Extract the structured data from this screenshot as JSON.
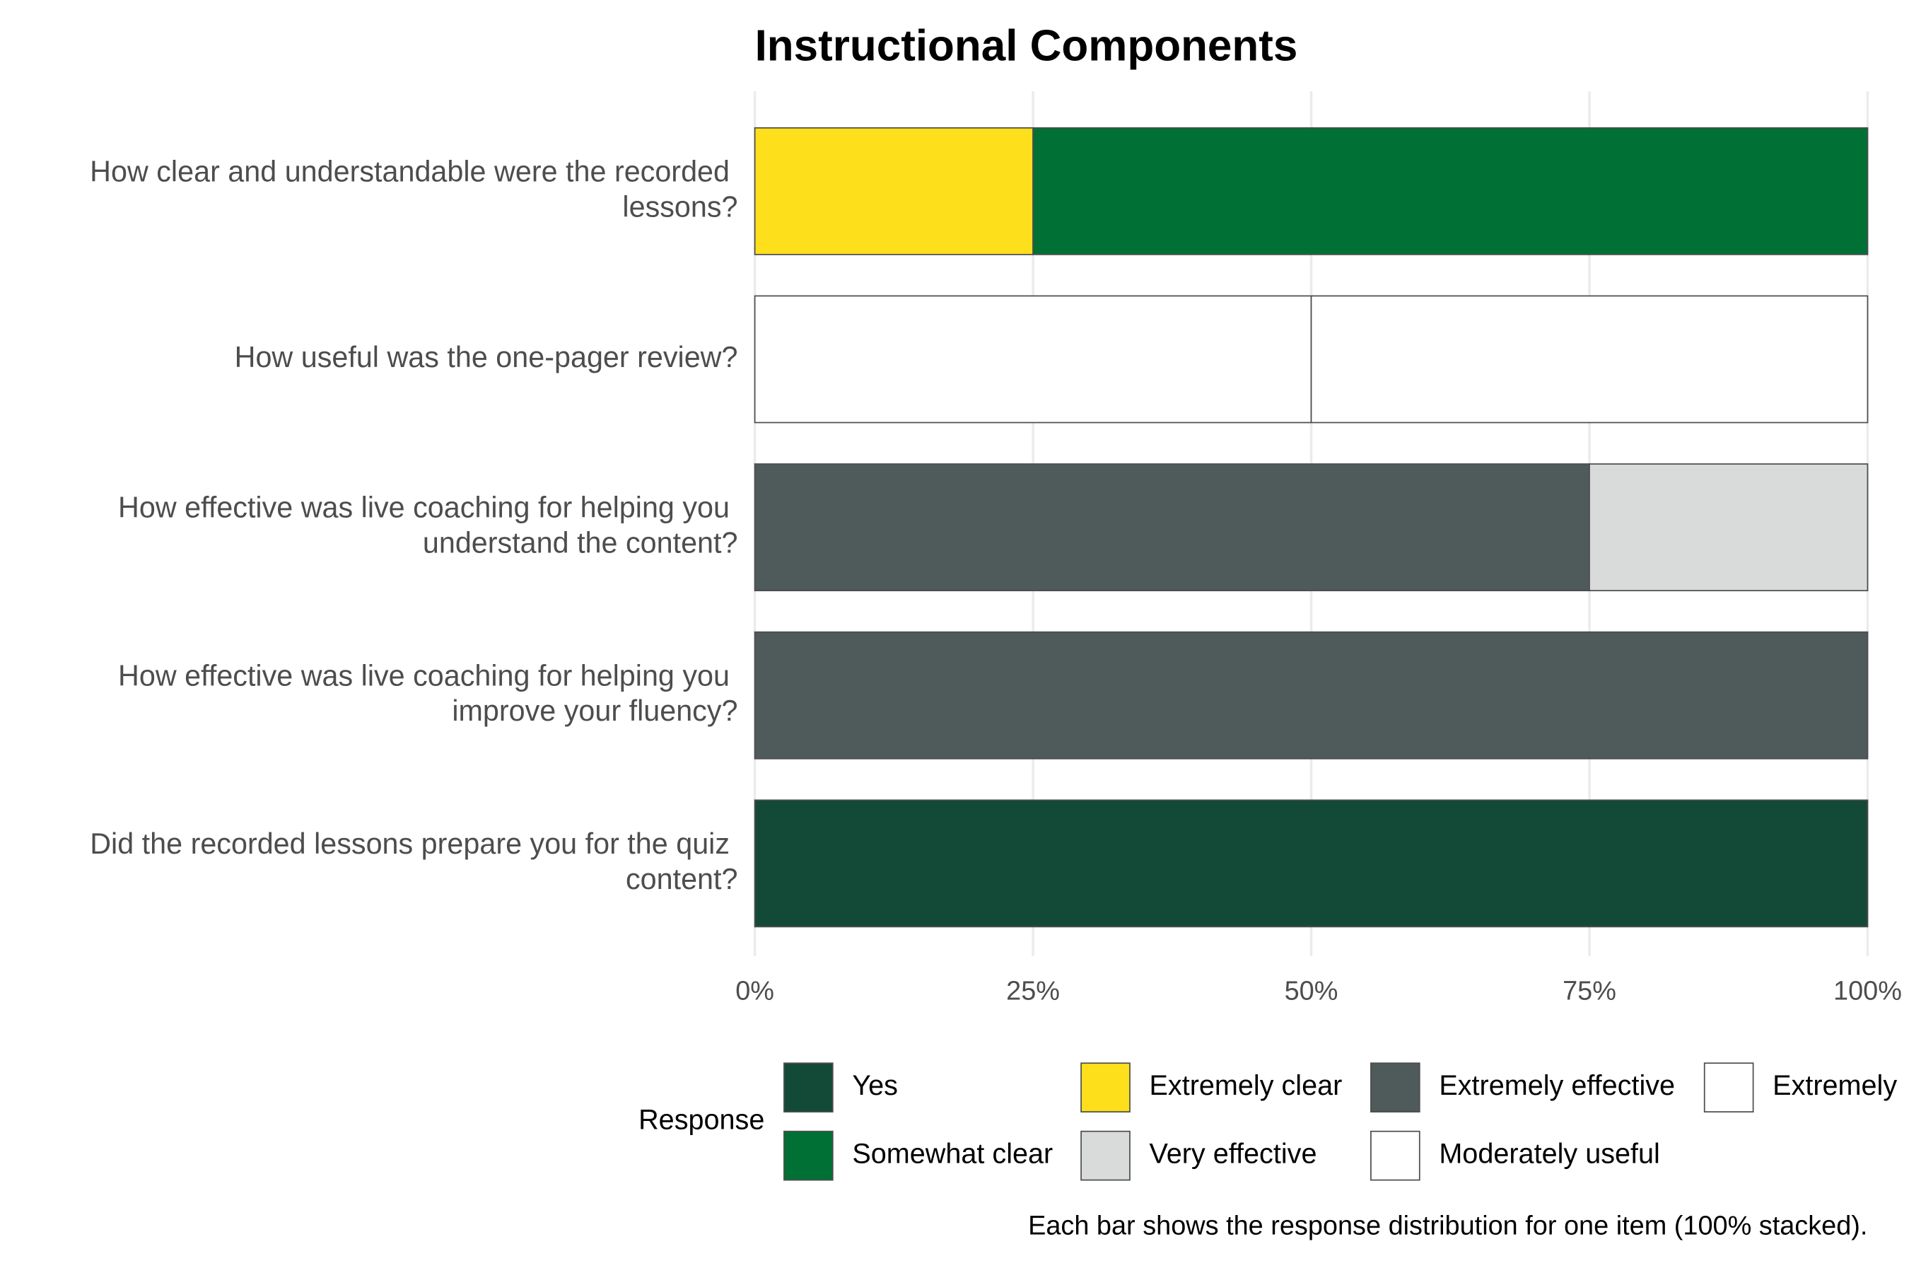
{
  "chart_data": {
    "type": "stacked_bar_horizontal",
    "title": "Instructional Components",
    "categories": [
      "How clear and understandable were the recorded lessons?",
      "How useful was the one-pager review?",
      "How effective was live coaching for helping you understand the content?",
      "How effective was live coaching for helping you improve your fluency?",
      "Did the recorded lessons prepare you for the quiz content?"
    ],
    "series": [
      {
        "name": "Yes",
        "color": "#134a37",
        "values": [
          0,
          0,
          0,
          0,
          100
        ]
      },
      {
        "name": "Somewhat clear",
        "color": "#007034",
        "values": [
          75,
          0,
          0,
          0,
          0
        ]
      },
      {
        "name": "Extremely clear",
        "color": "#fedf1b",
        "values": [
          25,
          0,
          0,
          0,
          0
        ]
      },
      {
        "name": "Very effective",
        "color": "#d8dbda",
        "values": [
          0,
          0,
          25,
          0,
          0
        ]
      },
      {
        "name": "Extremely effective",
        "color": "#4f5a5a",
        "values": [
          0,
          0,
          75,
          100,
          0
        ]
      },
      {
        "name": "Moderately useful",
        "color": "#ffffff",
        "values": [
          0,
          50,
          0,
          0,
          0
        ]
      },
      {
        "name": "Extremely",
        "color": "#ffffff",
        "values": [
          0,
          50,
          0,
          0,
          0
        ]
      }
    ],
    "xlim": [
      0,
      100
    ],
    "xticks": [
      {
        "value": 0,
        "label": "0%"
      },
      {
        "value": 25,
        "label": "25%"
      },
      {
        "value": 50,
        "label": "50%"
      },
      {
        "value": 75,
        "label": "75%"
      },
      {
        "value": 100,
        "label": "100%"
      }
    ],
    "grid": true,
    "legend_title": "Response",
    "caption": "Each bar shows the response distribution for one item (100% stacked)."
  }
}
